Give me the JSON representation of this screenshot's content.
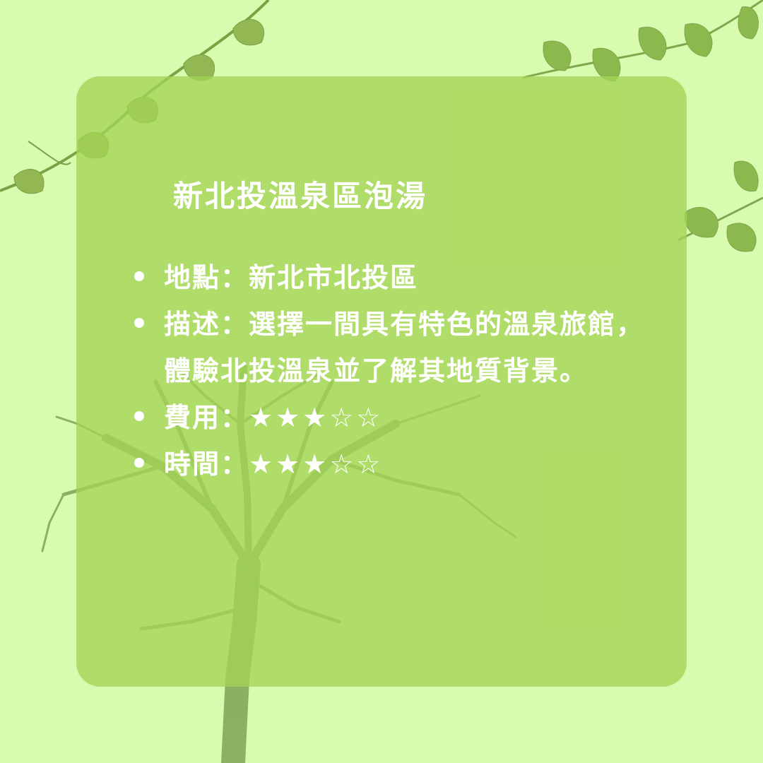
{
  "title": "新北投溫泉區泡湯",
  "details": [
    {
      "label": "地點：",
      "value": "新北市北投區"
    },
    {
      "label": "描述：",
      "value": "選擇一間具有特色的溫泉旅館，體驗北投溫泉並了解其地質背景。"
    }
  ],
  "ratings": [
    {
      "label": "費用：",
      "stars": "★★★☆☆",
      "score": 3,
      "max": 5
    },
    {
      "label": "時間：",
      "stars": "★★★☆☆",
      "score": 3,
      "max": 5
    }
  ],
  "colors": {
    "background": "#d9fbb0",
    "panel": "#a4d354",
    "text": "#ffffff",
    "foliage": "#7fae3c"
  }
}
